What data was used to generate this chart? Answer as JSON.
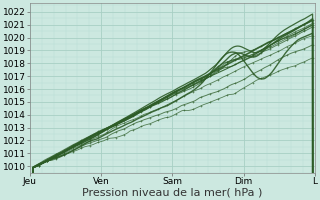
{
  "xlabel": "Pression niveau de la mer( hPa )",
  "bg_color": "#cce8e0",
  "grid_major_color": "#a8cfc4",
  "grid_minor_color": "#b8ddd6",
  "line_color": "#2d5c27",
  "ylim": [
    1009.5,
    1022.7
  ],
  "yticks": [
    1010,
    1011,
    1012,
    1013,
    1014,
    1015,
    1016,
    1017,
    1018,
    1019,
    1020,
    1021,
    1022
  ],
  "xtick_labels": [
    "Jeu",
    "Ven",
    "Sam",
    "Dim",
    "L"
  ],
  "xtick_pos": [
    0,
    0.25,
    0.5,
    0.75,
    1.0
  ],
  "xlabel_fontsize": 8,
  "tick_fontsize": 6.5
}
